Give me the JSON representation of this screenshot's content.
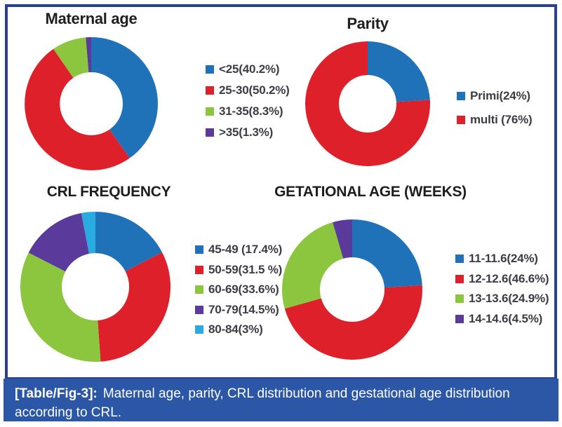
{
  "figure_caption": {
    "tag": "[Table/Fig-3]:",
    "line1": "Maternal age, parity, CRL distribution and gestational age distribution",
    "line2": "according to CRL."
  },
  "colors": {
    "frame_border": "#27418F",
    "caption_bg": "#2B57A6",
    "caption_text": "#FFFFFF",
    "title_text": "#1E1E1E",
    "legend_text": "#3C3C44",
    "series_blue": "#1F72B8",
    "series_red": "#DD2029",
    "series_green": "#8CC63F",
    "series_purple": "#5A3A9A",
    "series_cyan": "#29ABE2"
  },
  "chart_data": [
    {
      "id": "maternal_age",
      "type": "pie",
      "subtype": "donut",
      "title": "Maternal age",
      "legend_position": "right",
      "start_angle_deg": 0,
      "direction": "clockwise",
      "segments": [
        {
          "label": "<25(40.2%)",
          "value": 40.2,
          "color": "#1F72B8"
        },
        {
          "label": "25-30(50.2%)",
          "value": 50.2,
          "color": "#DD2029"
        },
        {
          "label": "31-35(8.3%)",
          "value": 8.3,
          "color": "#8CC63F"
        },
        {
          "label": ">35(1.3%)",
          "value": 1.3,
          "color": "#5A3A9A"
        }
      ]
    },
    {
      "id": "parity",
      "type": "pie",
      "subtype": "donut",
      "title": "Parity",
      "legend_position": "right",
      "start_angle_deg": 0,
      "direction": "clockwise",
      "segments": [
        {
          "label": "Primi(24%)",
          "value": 24,
          "color": "#1F72B8"
        },
        {
          "label": "multi (76%)",
          "value": 76,
          "color": "#DD2029"
        }
      ]
    },
    {
      "id": "crl_frequency",
      "type": "pie",
      "subtype": "donut",
      "title": "CRL FREQUENCY",
      "legend_position": "right",
      "start_angle_deg": 0,
      "direction": "clockwise",
      "segments": [
        {
          "label": "45-49 (17.4%)",
          "value": 17.4,
          "color": "#1F72B8"
        },
        {
          "label": "50-59(31.5 %)",
          "value": 31.5,
          "color": "#DD2029"
        },
        {
          "label": "60-69(33.6%)",
          "value": 33.6,
          "color": "#8CC63F"
        },
        {
          "label": "70-79(14.5%)",
          "value": 14.5,
          "color": "#5A3A9A"
        },
        {
          "label": "80-84(3%)",
          "value": 3,
          "color": "#29ABE2"
        }
      ]
    },
    {
      "id": "gestational_age",
      "type": "pie",
      "subtype": "donut",
      "title": "GETATIONAL AGE (WEEKS)",
      "legend_position": "right",
      "start_angle_deg": 0,
      "direction": "clockwise",
      "segments": [
        {
          "label": "11-11.6(24%)",
          "value": 24,
          "color": "#1F72B8"
        },
        {
          "label": "12-12.6(46.6%)",
          "value": 46.6,
          "color": "#DD2029"
        },
        {
          "label": "13-13.6(24.9%)",
          "value": 24.9,
          "color": "#8CC63F"
        },
        {
          "label": "14-14.6(4.5%)",
          "value": 4.5,
          "color": "#5A3A9A"
        }
      ]
    }
  ]
}
